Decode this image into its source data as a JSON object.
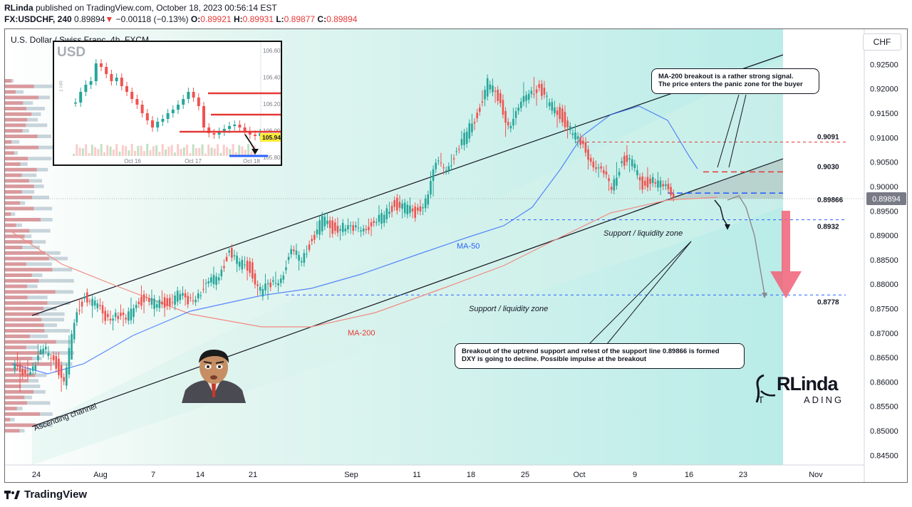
{
  "header": {
    "author": "RLinda",
    "published_text": " published on TradingView.com, October 18, 2023 00:56:14 EST",
    "symbol": "FX:USDCHF, 240",
    "last": "0.89894",
    "change_arrow": "▼",
    "change": "−0.00118 (−0.13%)",
    "o_label": "O:",
    "o": "0.89921",
    "h_label": "H:",
    "h": "0.89931",
    "l_label": "L:",
    "l": "0.89877",
    "c_label": "C:",
    "c": "0.89894"
  },
  "chart_title": "U.S. Dollar / Swiss Franc, 4h, FXCM",
  "currency_button": "CHF",
  "footer_brand": "TradingView",
  "colors": {
    "up": "#26a69a",
    "down": "#ef5350",
    "ma50": "#2962ff",
    "ma200": "#f28b82",
    "red_level": "#e53935",
    "blue_level": "#2962ff",
    "arrow": "#f06277"
  },
  "annotations": {
    "ma200_note_line1": "MA-200 breakout is a rather strong signal.",
    "ma200_note_line2": "The price enters the panic zone for the buyer",
    "breakout_note_line1": "Breakout of the uptrend support and retest of the support line 0.89866 is formed",
    "breakout_note_line2": "DXY is going to decline. Possible impulse at the breakout",
    "support_zone_1": "Support / liquidity zone",
    "support_zone_2": "Support / liquidity zone",
    "ascending_channel": "Ascending channel",
    "ma50_label": "MA-50",
    "ma200_label": "MA-200"
  },
  "logo": {
    "top": "RLinda",
    "bottom_left": "T",
    "bottom_right": "ADING"
  },
  "inset": {
    "title": "USD",
    "side_label": "1 HR",
    "price_ticks": [
      "106.60",
      "106.40",
      "106.20",
      "106.00",
      "105.80"
    ],
    "current": "105.94",
    "x_ticks": [
      "Oct 16",
      "Oct 17",
      "Oct 18"
    ]
  },
  "chart_data": {
    "type": "candlestick",
    "title": "U.S. Dollar / Swiss Franc, 4h, FXCM",
    "y_axis_ticks": [
      "0.92500",
      "0.92000",
      "0.91500",
      "0.91000",
      "0.90500",
      "0.90000",
      "0.89500",
      "0.89000",
      "0.88500",
      "0.88000",
      "0.87500",
      "0.87000",
      "0.86500",
      "0.86000",
      "0.85500",
      "0.85000",
      "0.84500"
    ],
    "x_axis_ticks": [
      "24",
      "Aug",
      "7",
      "14",
      "21",
      "Sep",
      "11",
      "18",
      "25",
      "Oct",
      "9",
      "16",
      "23",
      "Nov"
    ],
    "ylim": [
      0.843,
      0.929
    ],
    "last_price": "0.89894",
    "levels": [
      {
        "value": 0.9091,
        "label": "0.9091",
        "style": "red dashed"
      },
      {
        "value": 0.903,
        "label": "0.9030",
        "style": "red dashed"
      },
      {
        "value": 0.89866,
        "label": "0.89866",
        "style": "blue dashed"
      },
      {
        "value": 0.8932,
        "label": "0.8932",
        "style": "blue dashed"
      },
      {
        "value": 0.8778,
        "label": "0.8778",
        "style": "blue dashed"
      }
    ],
    "price_path": [
      [
        0.8625,
        0.8655,
        0.857
      ],
      [
        0.8625,
        0.866,
        0.864
      ],
      [
        0.8665,
        0.869,
        0.865
      ],
      [
        0.8655,
        0.8675,
        0.8628
      ],
      [
        0.859,
        0.8665,
        0.8555
      ],
      [
        0.8725,
        0.8755,
        0.8605
      ],
      [
        0.878,
        0.8805,
        0.8715
      ],
      [
        0.8755,
        0.8775,
        0.8728
      ],
      [
        0.8735,
        0.8765,
        0.8715
      ],
      [
        0.874,
        0.8755,
        0.8715
      ],
      [
        0.872,
        0.8755,
        0.8695
      ],
      [
        0.877,
        0.8795,
        0.871
      ],
      [
        0.8765,
        0.8795,
        0.874
      ],
      [
        0.8758,
        0.878,
        0.8745
      ],
      [
        0.8765,
        0.879,
        0.874
      ],
      [
        0.8775,
        0.879,
        0.876
      ],
      [
        0.8765,
        0.8785,
        0.875
      ],
      [
        0.8785,
        0.88,
        0.8765
      ],
      [
        0.8795,
        0.8815,
        0.8765
      ],
      [
        0.8825,
        0.884,
        0.879
      ],
      [
        0.8865,
        0.8875,
        0.8835
      ],
      [
        0.884,
        0.887,
        0.8825
      ],
      [
        0.8835,
        0.8855,
        0.8815
      ],
      [
        0.8785,
        0.8835,
        0.8765
      ],
      [
        0.8795,
        0.8815,
        0.8745
      ],
      [
        0.882,
        0.8845,
        0.8785
      ],
      [
        0.886,
        0.887,
        0.882
      ],
      [
        0.8855,
        0.887,
        0.8835
      ],
      [
        0.889,
        0.8905,
        0.886
      ],
      [
        0.893,
        0.8945,
        0.8885
      ],
      [
        0.8915,
        0.894,
        0.8895
      ],
      [
        0.892,
        0.8935,
        0.8895
      ],
      [
        0.8905,
        0.893,
        0.889
      ],
      [
        0.8925,
        0.8945,
        0.89
      ],
      [
        0.8915,
        0.894,
        0.8895
      ],
      [
        0.8945,
        0.8965,
        0.891
      ],
      [
        0.8965,
        0.8985,
        0.894
      ],
      [
        0.8955,
        0.8975,
        0.8935
      ],
      [
        0.8945,
        0.897,
        0.8935
      ],
      [
        0.8975,
        0.8985,
        0.8935
      ],
      [
        0.904,
        0.906,
        0.8935
      ],
      [
        0.9045,
        0.9065,
        0.903
      ],
      [
        0.9065,
        0.909,
        0.904
      ],
      [
        0.911,
        0.9125,
        0.906
      ],
      [
        0.915,
        0.917,
        0.91
      ],
      [
        0.921,
        0.9235,
        0.914
      ],
      [
        0.918,
        0.922,
        0.9155
      ],
      [
        0.913,
        0.9185,
        0.9095
      ],
      [
        0.915,
        0.9175,
        0.912
      ],
      [
        0.92,
        0.9235,
        0.914
      ],
      [
        0.92,
        0.9245,
        0.917
      ],
      [
        0.9165,
        0.921,
        0.914
      ],
      [
        0.915,
        0.9175,
        0.912
      ],
      [
        0.9115,
        0.916,
        0.909
      ],
      [
        0.9085,
        0.913,
        0.907
      ],
      [
        0.906,
        0.909,
        0.904
      ],
      [
        0.9025,
        0.907,
        0.9005
      ],
      [
        0.9,
        0.9035,
        0.898
      ],
      [
        0.9055,
        0.9095,
        0.9005
      ],
      [
        0.9045,
        0.9075,
        0.9015
      ],
      [
        0.9005,
        0.905,
        0.8985
      ],
      [
        0.9015,
        0.9035,
        0.8995
      ],
      [
        0.8995,
        0.903,
        0.8982
      ],
      [
        0.8989,
        0.9001,
        0.8985
      ]
    ],
    "forecast_paths": [
      [
        [
          0.8985,
          0.8985
        ],
        [
          0.8965,
          0.897
        ],
        [
          0.8935,
          0.8935
        ]
      ],
      [
        [
          0.8965,
          0.8985
        ],
        [
          0.8995,
          0.893
        ],
        [
          0.8795,
          0.8795
        ]
      ]
    ]
  }
}
